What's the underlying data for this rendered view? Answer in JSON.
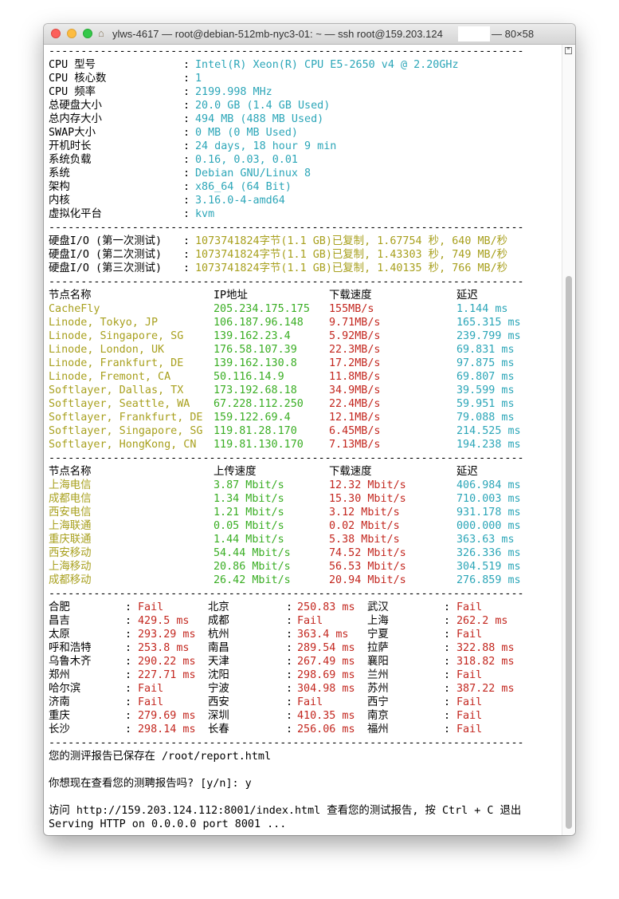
{
  "window": {
    "title": "ylws-4617 — root@debian-512mb-nyc3-01: ~ — ssh root@159.203.124",
    "size": "— 80×58",
    "icon": "home-icon"
  },
  "separator": "--------------------------------------------------------------------------",
  "colors": {
    "cyan": "#2ca6b8",
    "olive": "#a8a01e",
    "green": "#3aae24",
    "red": "#c3271f"
  },
  "sysinfo": [
    {
      "label": "CPU 型号",
      "value": "Intel(R) Xeon(R) CPU E5-2650 v4 @ 2.20GHz"
    },
    {
      "label": "CPU 核心数",
      "value": "1"
    },
    {
      "label": "CPU 频率",
      "value": "2199.998 MHz"
    },
    {
      "label": "总硬盘大小",
      "value": "20.0 GB (1.4 GB Used)"
    },
    {
      "label": "总内存大小",
      "value": "494 MB (488 MB Used)"
    },
    {
      "label": "SWAP大小",
      "value": "0 MB (0 MB Used)"
    },
    {
      "label": "开机时长",
      "value": "24 days, 18 hour 9 min"
    },
    {
      "label": "系统负载",
      "value": "0.16, 0.03, 0.01"
    },
    {
      "label": "系统",
      "value": "Debian GNU/Linux 8"
    },
    {
      "label": "架构",
      "value": "x86_64 (64 Bit)"
    },
    {
      "label": "内核",
      "value": "3.16.0-4-amd64"
    },
    {
      "label": "虚拟化平台",
      "value": "kvm"
    }
  ],
  "disk_io": [
    {
      "label": "硬盘I/O (第一次测试)",
      "value": "1073741824字节(1.1 GB)已复制, 1.67754 秒, 640 MB/秒"
    },
    {
      "label": "硬盘I/O (第二次测试)",
      "value": "1073741824字节(1.1 GB)已复制, 1.43303 秒, 749 MB/秒"
    },
    {
      "label": "硬盘I/O (第三次测试)",
      "value": "1073741824字节(1.1 GB)已复制, 1.40135 秒, 766 MB/秒"
    }
  ],
  "speed": {
    "headers": [
      "节点名称",
      "IP地址",
      "下载速度",
      "延迟"
    ],
    "rows": [
      [
        "CacheFly",
        "205.234.175.175",
        "155MB/s",
        "1.144 ms"
      ],
      [
        "Linode, Tokyo, JP",
        "106.187.96.148",
        "9.71MB/s",
        "165.315 ms"
      ],
      [
        "Linode, Singapore, SG",
        "139.162.23.4",
        "5.92MB/s",
        "239.799 ms"
      ],
      [
        "Linode, London, UK",
        "176.58.107.39",
        "22.3MB/s",
        "69.831 ms"
      ],
      [
        "Linode, Frankfurt, DE",
        "139.162.130.8",
        "17.2MB/s",
        "97.875 ms"
      ],
      [
        "Linode, Fremont, CA",
        "50.116.14.9",
        "11.8MB/s",
        "69.807 ms"
      ],
      [
        "Softlayer, Dallas, TX",
        "173.192.68.18",
        "34.9MB/s",
        "39.599 ms"
      ],
      [
        "Softlayer, Seattle, WA",
        "67.228.112.250",
        "22.4MB/s",
        "59.951 ms"
      ],
      [
        "Softlayer, Frankfurt, DE",
        "159.122.69.4",
        "12.1MB/s",
        "79.088 ms"
      ],
      [
        "Softlayer, Singapore, SG",
        "119.81.28.170",
        "6.45MB/s",
        "214.525 ms"
      ],
      [
        "Softlayer, HongKong, CN",
        "119.81.130.170",
        "7.13MB/s",
        "194.238 ms"
      ]
    ]
  },
  "isp": {
    "headers": [
      "节点名称",
      "上传速度",
      "下载速度",
      "延迟"
    ],
    "rows": [
      [
        "上海电信",
        "3.87 Mbit/s",
        "12.32 Mbit/s",
        "406.984 ms"
      ],
      [
        "成都电信",
        "1.34 Mbit/s",
        "15.30 Mbit/s",
        "710.003 ms"
      ],
      [
        "西安电信",
        "1.21 Mbit/s",
        "3.12 Mbit/s",
        "931.178 ms"
      ],
      [
        "上海联通",
        "0.05 Mbit/s",
        "0.02 Mbit/s",
        "000.000 ms"
      ],
      [
        "重庆联通",
        "1.44 Mbit/s",
        "5.38 Mbit/s",
        "363.63 ms"
      ],
      [
        "西安移动",
        "54.44 Mbit/s",
        "74.52 Mbit/s",
        "326.336 ms"
      ],
      [
        "上海移动",
        "20.86 Mbit/s",
        "56.53 Mbit/s",
        "304.519 ms"
      ],
      [
        "成都移动",
        "26.42 Mbit/s",
        "20.94 Mbit/s",
        "276.859 ms"
      ]
    ]
  },
  "ping": [
    [
      [
        "合肥",
        "Fail"
      ],
      [
        "北京",
        "250.83 ms"
      ],
      [
        "武汉",
        "Fail"
      ]
    ],
    [
      [
        "昌吉",
        "429.5 ms"
      ],
      [
        "成都",
        "Fail"
      ],
      [
        "上海",
        "262.2 ms"
      ]
    ],
    [
      [
        "太原",
        "293.29 ms"
      ],
      [
        "杭州",
        "363.4 ms"
      ],
      [
        "宁夏",
        "Fail"
      ]
    ],
    [
      [
        "呼和浩特",
        "253.8 ms"
      ],
      [
        "南昌",
        "289.54 ms"
      ],
      [
        "拉萨",
        "322.88 ms"
      ]
    ],
    [
      [
        "乌鲁木齐",
        "290.22 ms"
      ],
      [
        "天津",
        "267.49 ms"
      ],
      [
        "襄阳",
        "318.82 ms"
      ]
    ],
    [
      [
        "郑州",
        "227.71 ms"
      ],
      [
        "沈阳",
        "298.69 ms"
      ],
      [
        "兰州",
        "Fail"
      ]
    ],
    [
      [
        "哈尔滨",
        "Fail"
      ],
      [
        "宁波",
        "304.98 ms"
      ],
      [
        "苏州",
        "387.22 ms"
      ]
    ],
    [
      [
        "济南",
        "Fail"
      ],
      [
        "西安",
        "Fail"
      ],
      [
        "西宁",
        "Fail"
      ]
    ],
    [
      [
        "重庆",
        "279.69 ms"
      ],
      [
        "深圳",
        "410.35 ms"
      ],
      [
        "南京",
        "Fail"
      ]
    ],
    [
      [
        "长沙",
        "298.14 ms"
      ],
      [
        "长春",
        "256.06 ms"
      ],
      [
        "福州",
        "Fail"
      ]
    ]
  ],
  "footer": {
    "saved": "您的测评报告已保存在 /root/report.html",
    "prompt": "你想现在查看您的测聘报告吗? [y/n]: y",
    "visit": "访问 http://159.203.124.112:8001/index.html 查看您的测试报告, 按 Ctrl + C 退出",
    "serving": "Serving HTTP on 0.0.0.0 port 8001 ..."
  }
}
